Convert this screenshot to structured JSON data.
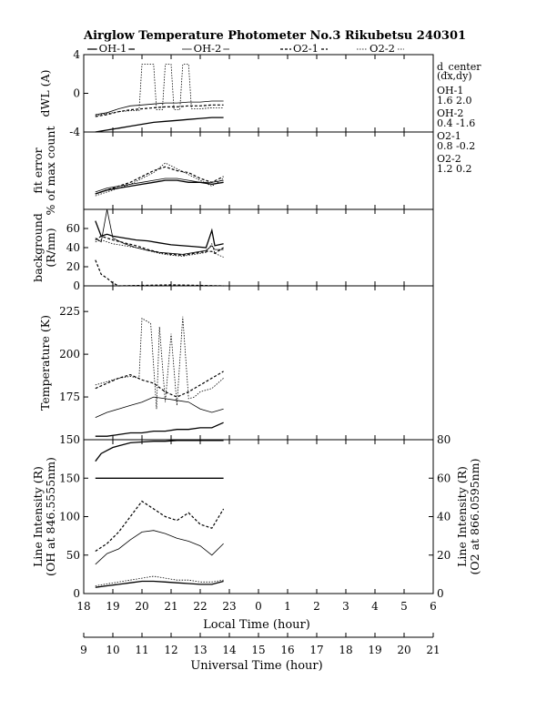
{
  "title": "Airglow Temperature Photometer No.3  Rikubetsu    240301",
  "legend": {
    "entries": [
      {
        "label": "OH-1",
        "style": "solid"
      },
      {
        "label": "OH-2",
        "style": "solid-thin"
      },
      {
        "label": "O2-1",
        "style": "dashed"
      },
      {
        "label": "O2-2",
        "style": "dotted"
      }
    ]
  },
  "d_center": {
    "header": "d_center",
    "subheader": "(dx,dy)",
    "rows": [
      {
        "name": "OH-1",
        "value": "1.6   2.0"
      },
      {
        "name": "OH-2",
        "value": "0.4   -1.6"
      },
      {
        "name": "O2-1",
        "value": "0.8   -0.2"
      },
      {
        "name": "O2-2",
        "value": "1.2   0.2"
      }
    ]
  },
  "axes": {
    "local_time_label": "Local Time (hour)",
    "universal_time_label": "Universal Time (hour)",
    "local_ticks": [
      "18",
      "19",
      "20",
      "21",
      "22",
      "23",
      "0",
      "1",
      "2",
      "3",
      "4",
      "5",
      "6"
    ],
    "ut_ticks": [
      "9",
      "10",
      "11",
      "12",
      "13",
      "14",
      "15",
      "16",
      "17",
      "18",
      "19",
      "20",
      "21"
    ]
  },
  "chart_data": [
    {
      "type": "line",
      "panel": "dwl",
      "ylabel": "dWL (A)",
      "ylim": [
        -4,
        4
      ],
      "yticks": [
        "4",
        "0",
        "-4"
      ],
      "xlim": [
        18,
        30
      ],
      "series": [
        {
          "name": "OH-1",
          "x": [
            18.4,
            18.8,
            19.2,
            19.6,
            20.0,
            20.4,
            20.8,
            21.2,
            21.6,
            22.0,
            22.4,
            22.8
          ],
          "y": [
            -4.0,
            -3.8,
            -3.6,
            -3.4,
            -3.2,
            -3.0,
            -2.9,
            -2.8,
            -2.7,
            -2.6,
            -2.5,
            -2.5
          ]
        },
        {
          "name": "OH-2",
          "x": [
            18.4,
            18.8,
            19.2,
            19.6,
            20.0,
            20.4,
            20.8,
            21.2,
            21.6,
            22.0,
            22.4,
            22.8
          ],
          "y": [
            -2.2,
            -2.0,
            -1.6,
            -1.3,
            -1.2,
            -1.1,
            -1.0,
            -1.0,
            -0.9,
            -0.9,
            -0.8,
            -0.8
          ]
        },
        {
          "name": "O2-1",
          "x": [
            18.4,
            18.8,
            19.2,
            19.6,
            20.0,
            20.4,
            20.8,
            21.2,
            21.6,
            22.0,
            22.4,
            22.8
          ],
          "y": [
            -2.4,
            -2.2,
            -1.9,
            -1.7,
            -1.6,
            -1.5,
            -1.4,
            -1.4,
            -1.3,
            -1.3,
            -1.2,
            -1.2
          ]
        },
        {
          "name": "O2-2",
          "x": [
            18.4,
            18.8,
            19.2,
            19.6,
            19.9,
            20.0,
            20.4,
            20.5,
            20.7,
            20.8,
            21.0,
            21.1,
            21.3,
            21.4,
            21.6,
            21.7,
            22.0,
            22.4,
            22.8
          ],
          "y": [
            -2.3,
            -2.1,
            -1.9,
            -1.8,
            -1.8,
            3.0,
            3.0,
            -1.7,
            -1.7,
            3.0,
            3.0,
            -1.7,
            -1.7,
            3.0,
            3.0,
            -1.6,
            -1.6,
            -1.5,
            -1.5
          ]
        }
      ]
    },
    {
      "type": "line",
      "panel": "fit_error",
      "ylabel": "fit error",
      "ylabel2": "% of max count",
      "xlim": [
        18,
        30
      ],
      "ylim": [
        0,
        2
      ],
      "series": [
        {
          "name": "OH-1",
          "x": [
            18.4,
            18.8,
            19.2,
            19.6,
            20.0,
            20.4,
            20.8,
            21.2,
            21.6,
            22.0,
            22.4,
            22.8
          ],
          "y": [
            0.4,
            0.5,
            0.55,
            0.6,
            0.65,
            0.7,
            0.75,
            0.75,
            0.7,
            0.7,
            0.65,
            0.7
          ]
        },
        {
          "name": "OH-2",
          "x": [
            18.4,
            18.8,
            19.2,
            19.6,
            20.0,
            20.4,
            20.8,
            21.2,
            21.6,
            22.0,
            22.4,
            22.8
          ],
          "y": [
            0.45,
            0.55,
            0.6,
            0.65,
            0.7,
            0.75,
            0.8,
            0.8,
            0.75,
            0.7,
            0.7,
            0.75
          ]
        },
        {
          "name": "O2-1",
          "x": [
            18.4,
            18.8,
            19.2,
            19.6,
            20.0,
            20.4,
            20.8,
            21.2,
            21.6,
            22.0,
            22.4,
            22.8
          ],
          "y": [
            0.4,
            0.5,
            0.6,
            0.7,
            0.85,
            1.0,
            1.1,
            1.0,
            0.95,
            0.8,
            0.7,
            0.85
          ]
        },
        {
          "name": "O2-2",
          "x": [
            18.4,
            18.8,
            19.2,
            19.6,
            20.0,
            20.4,
            20.8,
            21.2,
            21.6,
            22.0,
            22.4,
            22.8
          ],
          "y": [
            0.35,
            0.45,
            0.55,
            0.65,
            0.8,
            0.95,
            1.2,
            1.05,
            0.9,
            0.75,
            0.6,
            0.8
          ]
        }
      ]
    },
    {
      "type": "line",
      "panel": "background",
      "ylabel": "background",
      "ylabel2": "(R/nm)",
      "ylim": [
        0,
        80
      ],
      "yticks": [
        "0",
        "20",
        "40",
        "60"
      ],
      "xlim": [
        18,
        30
      ],
      "series": [
        {
          "name": "OH-1",
          "x": [
            18.4,
            18.6,
            18.8,
            19.0,
            19.4,
            19.8,
            20.2,
            20.6,
            21.0,
            21.4,
            21.8,
            22.2,
            22.4,
            22.5,
            22.8
          ],
          "y": [
            68,
            52,
            54,
            52,
            50,
            48,
            47,
            45,
            43,
            42,
            41,
            40,
            58,
            42,
            44
          ]
        },
        {
          "name": "OH-2",
          "x": [
            18.4,
            18.6,
            18.8,
            19.0,
            19.4,
            19.8,
            20.2,
            20.6,
            21.0,
            21.4,
            21.8,
            22.2,
            22.4,
            22.5,
            22.8
          ],
          "y": [
            50,
            46,
            80,
            50,
            44,
            40,
            37,
            35,
            34,
            33,
            35,
            37,
            42,
            38,
            38
          ]
        },
        {
          "name": "O2-1",
          "x": [
            18.4,
            18.6,
            18.8,
            19.0,
            19.4,
            19.8,
            20.2,
            20.6,
            21.0,
            21.4,
            21.8,
            22.2,
            22.4,
            22.5,
            22.8
          ],
          "y": [
            48,
            52,
            50,
            48,
            45,
            42,
            38,
            35,
            33,
            32,
            34,
            36,
            36,
            34,
            40
          ]
        },
        {
          "name": "O2-2",
          "x": [
            18.4,
            18.6,
            18.8,
            19.0,
            19.4,
            19.8,
            20.2,
            20.6,
            21.0,
            21.4,
            21.8,
            22.2,
            22.4,
            22.5,
            22.8
          ],
          "y": [
            46,
            48,
            46,
            44,
            42,
            40,
            37,
            34,
            32,
            31,
            33,
            35,
            44,
            34,
            30
          ]
        },
        {
          "name": "O2-1 (low)",
          "x": [
            18.4,
            18.6,
            18.8,
            19.0,
            19.2,
            21.0,
            22.8
          ],
          "y": [
            27,
            12,
            8,
            3,
            0,
            1,
            0
          ]
        }
      ]
    },
    {
      "type": "line",
      "panel": "temperature",
      "ylabel": "Temperature (K)",
      "ylim": [
        150,
        240
      ],
      "yticks": [
        "150",
        "175",
        "200",
        "225"
      ],
      "xlim": [
        18,
        30
      ],
      "series": [
        {
          "name": "OH-1",
          "x": [
            18.4,
            18.8,
            19.2,
            19.6,
            20.0,
            20.4,
            20.8,
            21.2,
            21.6,
            22.0,
            22.4,
            22.8
          ],
          "y": [
            152,
            152,
            153,
            154,
            154,
            155,
            155,
            156,
            156,
            157,
            157,
            160
          ]
        },
        {
          "name": "OH-2",
          "x": [
            18.4,
            18.8,
            19.2,
            19.6,
            20.0,
            20.4,
            20.8,
            21.2,
            21.6,
            22.0,
            22.4,
            22.8
          ],
          "y": [
            163,
            166,
            168,
            170,
            172,
            175,
            174,
            173,
            172,
            168,
            166,
            168
          ]
        },
        {
          "name": "O2-1",
          "x": [
            18.4,
            18.8,
            19.2,
            19.6,
            20.0,
            20.4,
            20.8,
            21.2,
            21.6,
            22.0,
            22.4,
            22.8
          ],
          "y": [
            180,
            183,
            186,
            188,
            185,
            183,
            178,
            175,
            178,
            182,
            186,
            190
          ]
        },
        {
          "name": "O2-2",
          "x": [
            18.4,
            18.8,
            19.2,
            19.6,
            19.9,
            20.0,
            20.3,
            20.5,
            20.6,
            20.8,
            21.0,
            21.2,
            21.4,
            21.6,
            21.8,
            22.0,
            22.4,
            22.8
          ],
          "y": [
            182,
            184,
            186,
            187,
            186,
            221,
            218,
            168,
            216,
            172,
            212,
            170,
            222,
            174,
            175,
            178,
            180,
            186
          ]
        }
      ]
    },
    {
      "type": "line",
      "panel": "intensity",
      "ylabel": "Line Intensity (R)",
      "ylabel2": "(OH at 846.5555nm)",
      "ylabel_right": "Line Intensity (R)",
      "ylabel_right2": "(O2 at 866.0595nm)",
      "ylim": [
        0,
        200
      ],
      "yticks": [
        "0",
        "50",
        "100",
        "150"
      ],
      "ylim_right": [
        0,
        80
      ],
      "yticks_right": [
        "0",
        "20",
        "40",
        "60",
        "80"
      ],
      "xlim": [
        18,
        30
      ],
      "series": [
        {
          "name": "OH-1",
          "axis": "left",
          "x": [
            18.4,
            22.8
          ],
          "y": [
            150,
            150
          ]
        },
        {
          "name": "OH-2",
          "axis": "left",
          "x": [
            18.4,
            18.8,
            19.2,
            19.6,
            20.0,
            20.4,
            20.8,
            21.2,
            21.6,
            22.0,
            22.4,
            22.8
          ],
          "y": [
            38,
            52,
            58,
            70,
            80,
            82,
            78,
            72,
            68,
            62,
            50,
            65
          ]
        },
        {
          "name": "O2-1",
          "axis": "right",
          "x": [
            18.4,
            18.8,
            19.2,
            19.6,
            20.0,
            20.4,
            20.8,
            21.2,
            21.6,
            22.0,
            22.4,
            22.8
          ],
          "y": [
            22,
            26,
            32,
            40,
            48,
            44,
            40,
            38,
            42,
            36,
            34,
            44
          ]
        },
        {
          "name": "O2-2",
          "axis": "right",
          "x": [
            18.4,
            18.8,
            19.2,
            19.6,
            20.0,
            20.4,
            20.8,
            21.2,
            21.6,
            22.0,
            22.4,
            22.8
          ],
          "y": [
            4,
            5,
            6,
            7,
            8,
            9,
            8,
            7,
            7,
            6,
            6,
            7
          ]
        },
        {
          "name": "OH-1 (low)",
          "axis": "left",
          "x": [
            18.4,
            18.8,
            19.2,
            19.6,
            20.0,
            20.4,
            20.8,
            21.2,
            21.6,
            22.0,
            22.4,
            22.8
          ],
          "y": [
            8,
            10,
            12,
            14,
            16,
            16,
            15,
            14,
            13,
            12,
            12,
            16
          ]
        },
        {
          "name": "OH-1 (top)",
          "axis": "left",
          "x": [
            18.4,
            18.6,
            18.8,
            19.0,
            19.2,
            19.6,
            20.0,
            20.4,
            20.8,
            21.2,
            21.6,
            22.0,
            22.4,
            22.8
          ],
          "y": [
            172,
            182,
            186,
            190,
            192,
            196,
            197,
            198,
            198,
            199,
            199,
            199,
            199,
            199
          ]
        }
      ]
    }
  ]
}
